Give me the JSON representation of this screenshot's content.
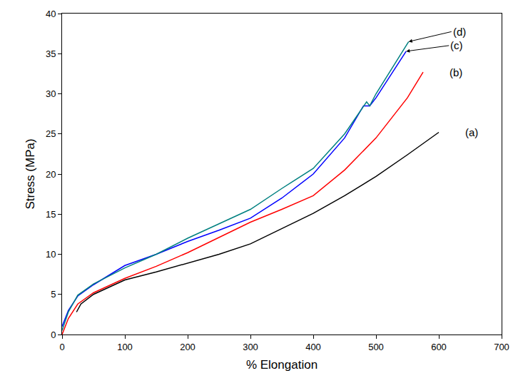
{
  "chart_data": {
    "type": "line",
    "x_label": "% Elongation",
    "y_label": "Stress (MPa)",
    "xlim": [
      0,
      700
    ],
    "xticks": [
      0,
      100,
      200,
      300,
      400,
      500,
      600,
      700
    ],
    "ylim": [
      0,
      40
    ],
    "yticks": [
      0,
      5,
      10,
      15,
      20,
      25,
      30,
      35,
      40
    ],
    "grid": false,
    "series": [
      {
        "name": "(a)",
        "color": "#000000",
        "x": [
          23,
          30,
          50,
          100,
          150,
          200,
          250,
          300,
          350,
          400,
          450,
          500,
          550,
          600
        ],
        "values": [
          2.8,
          3.8,
          5,
          6.8,
          7.8,
          8.9,
          10,
          11.3,
          13.2,
          15.1,
          17.3,
          19.7,
          22.4,
          25.2
        ]
      },
      {
        "name": "(b)",
        "color": "#ff0000",
        "x": [
          0,
          10,
          25,
          50,
          100,
          150,
          200,
          250,
          300,
          350,
          400,
          450,
          500,
          550,
          575
        ],
        "values": [
          0,
          2,
          3.8,
          5.2,
          7,
          8.5,
          10.2,
          12.1,
          14,
          15.6,
          17.3,
          20.5,
          24.5,
          29.5,
          32.7
        ]
      },
      {
        "name": "(c)",
        "color": "#0000ff",
        "x": [
          0,
          10,
          25,
          50,
          100,
          150,
          200,
          250,
          300,
          350,
          400,
          450,
          480,
          490,
          500,
          548
        ],
        "values": [
          1,
          3,
          4.8,
          6.2,
          8.6,
          10,
          11.6,
          13,
          14.5,
          17,
          20,
          24.5,
          28.5,
          28.5,
          29.5,
          35.3
        ]
      },
      {
        "name": "(d)",
        "color": "#008080",
        "x": [
          0,
          10,
          25,
          50,
          100,
          150,
          200,
          250,
          300,
          350,
          400,
          450,
          485,
          490,
          500,
          552
        ],
        "values": [
          0.5,
          2.8,
          4.9,
          6.3,
          8.3,
          10,
          12,
          13.8,
          15.6,
          18.2,
          20.7,
          25,
          29,
          28.5,
          30,
          36.5
        ]
      }
    ]
  }
}
